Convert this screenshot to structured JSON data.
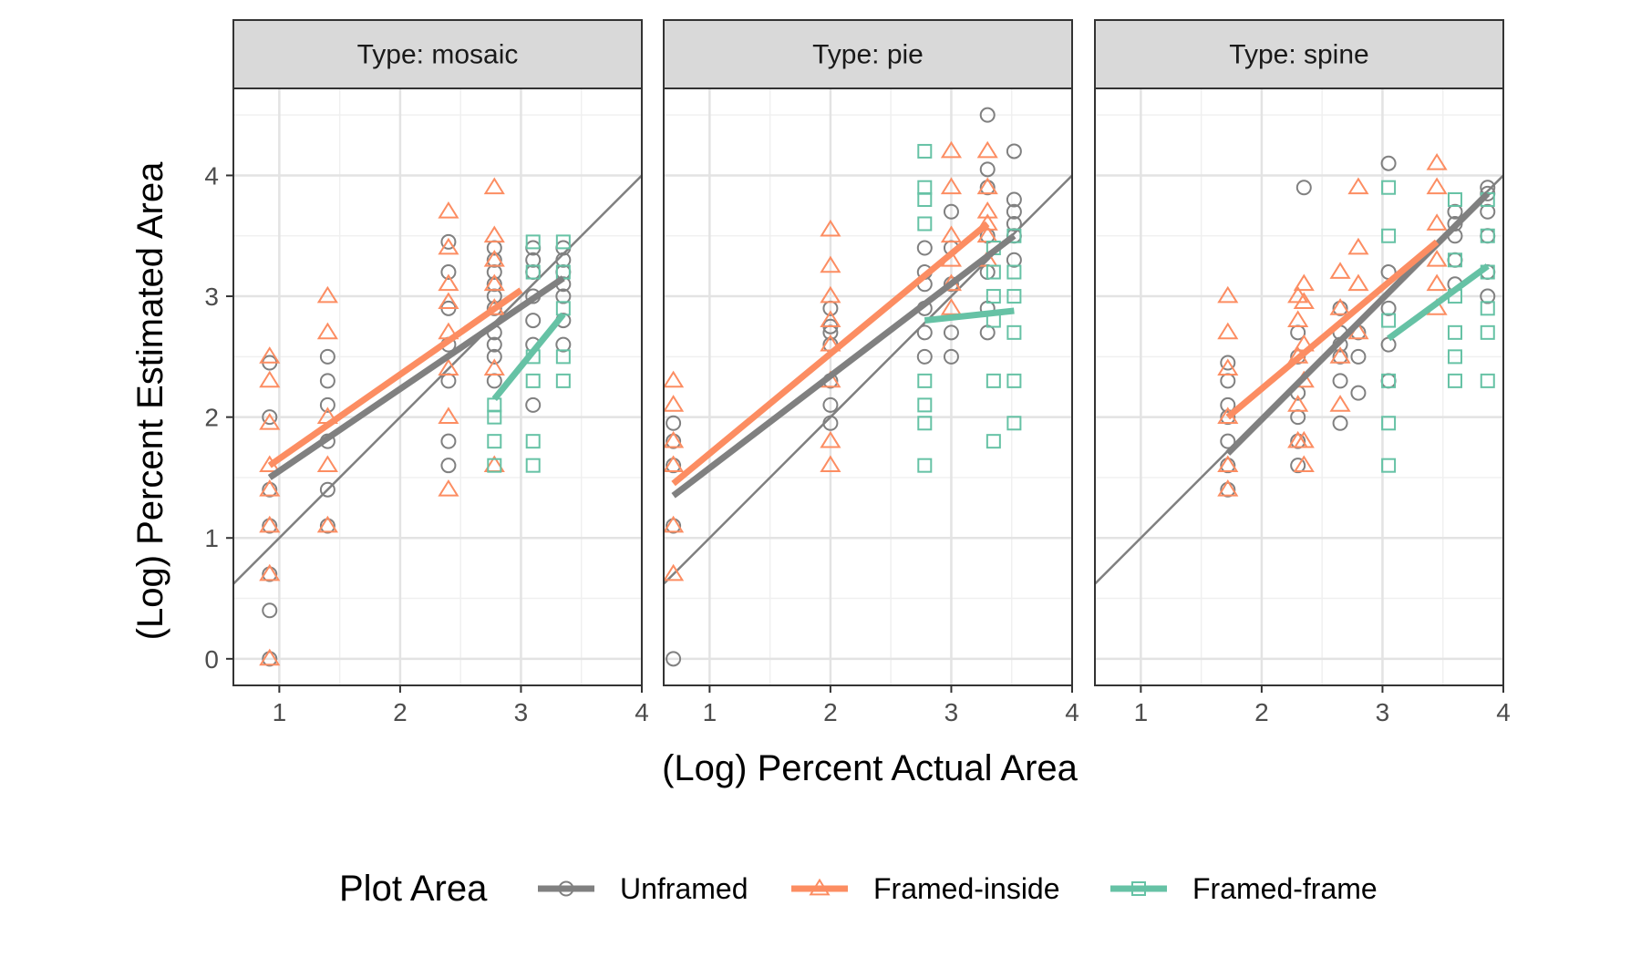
{
  "chart_data": {
    "type": "scatter",
    "xlabel": "(Log) Percent Actual Area",
    "ylabel": "(Log) Percent Estimated Area",
    "xlim": [
      0.62,
      4.0
    ],
    "ylim": [
      -0.22,
      4.72
    ],
    "x_ticks": [
      "1",
      "2",
      "3",
      "4"
    ],
    "y_ticks": [
      "0",
      "1",
      "2",
      "3",
      "4"
    ],
    "grid": true,
    "reference_line": "y = x",
    "legend": {
      "title": "Plot Area",
      "position": "bottom",
      "entries": [
        "Unframed",
        "Framed-inside",
        "Framed-frame"
      ]
    },
    "colors": {
      "Unframed": "#808080",
      "Framed-inside": "#fc8d62",
      "Framed-frame": "#66c2a5"
    },
    "panels": [
      {
        "strip": "Type: mosaic",
        "series": [
          {
            "name": "Unframed",
            "x": [
              0.92,
              0.92,
              0.92,
              0.92,
              0.92,
              0.92,
              0.92,
              1.4,
              1.4,
              1.4,
              1.4,
              1.4,
              1.4,
              2.4,
              2.4,
              2.4,
              2.4,
              2.4,
              2.4,
              2.4,
              2.78,
              2.78,
              2.78,
              2.78,
              2.78,
              2.78,
              2.78,
              2.78,
              2.78,
              2.78,
              3.1,
              3.1,
              3.1,
              3.1,
              3.1,
              3.1,
              3.1,
              3.35,
              3.35,
              3.35,
              3.35,
              3.35,
              3.35,
              3.35
            ],
            "y": [
              0.0,
              0.4,
              0.7,
              1.1,
              1.4,
              2.0,
              2.45,
              1.1,
              1.4,
              1.8,
              2.1,
              2.3,
              2.5,
              1.6,
              1.8,
              2.3,
              2.6,
              2.9,
              3.2,
              3.45,
              2.3,
              2.5,
              2.7,
              2.9,
              3.0,
              3.1,
              3.2,
              3.3,
              3.4,
              2.6,
              2.1,
              2.6,
              2.8,
              3.0,
              3.2,
              3.3,
              3.4,
              2.6,
              2.8,
              3.0,
              3.1,
              3.2,
              3.3,
              3.4
            ],
            "fit": {
              "x": [
                0.92,
                3.35
              ],
              "y": [
                1.5,
                3.15
              ]
            }
          },
          {
            "name": "Framed-inside",
            "x": [
              0.92,
              0.92,
              0.92,
              0.92,
              0.92,
              0.92,
              0.92,
              0.92,
              1.4,
              1.4,
              1.4,
              1.4,
              1.4,
              2.4,
              2.4,
              2.4,
              2.4,
              2.4,
              2.4,
              2.4,
              2.4,
              2.78,
              2.78,
              2.78,
              2.78,
              2.78,
              2.78,
              2.78
            ],
            "y": [
              0.0,
              0.7,
              1.1,
              1.4,
              1.6,
              1.95,
              2.3,
              2.5,
              1.1,
              1.6,
              2.0,
              2.7,
              3.0,
              1.4,
              2.0,
              2.4,
              2.7,
              2.95,
              3.1,
              3.4,
              3.7,
              1.6,
              2.4,
              2.9,
              3.1,
              3.3,
              3.5,
              3.9
            ],
            "fit": {
              "x": [
                0.92,
                3.0
              ],
              "y": [
                1.6,
                3.05
              ]
            }
          },
          {
            "name": "Framed-frame",
            "x": [
              2.78,
              2.78,
              2.78,
              2.78,
              3.1,
              3.1,
              3.1,
              3.1,
              3.1,
              3.1,
              3.35,
              3.35,
              3.35,
              3.35,
              3.35
            ],
            "y": [
              1.6,
              1.8,
              2.0,
              2.1,
              1.6,
              1.8,
              2.3,
              2.5,
              3.2,
              3.45,
              2.3,
              2.5,
              2.9,
              3.2,
              3.45
            ],
            "fit": {
              "x": [
                2.78,
                3.35
              ],
              "y": [
                2.15,
                2.85
              ]
            }
          }
        ]
      },
      {
        "strip": "Type: pie",
        "series": [
          {
            "name": "Unframed",
            "x": [
              0.7,
              0.7,
              0.7,
              0.7,
              0.7,
              2.0,
              2.0,
              2.0,
              2.0,
              2.0,
              2.0,
              2.0,
              2.78,
              2.78,
              2.78,
              2.78,
              2.78,
              2.78,
              3.0,
              3.0,
              3.0,
              3.0,
              3.0,
              3.3,
              3.3,
              3.3,
              3.3,
              3.3,
              3.3,
              3.3,
              3.52,
              3.52,
              3.52,
              3.52,
              3.52,
              3.52
            ],
            "y": [
              0.0,
              1.1,
              1.6,
              1.8,
              1.95,
              1.95,
              2.1,
              2.3,
              2.6,
              2.75,
              2.9,
              2.7,
              2.5,
              2.7,
              2.9,
              3.1,
              3.2,
              3.4,
              2.5,
              2.7,
              3.1,
              3.4,
              3.7,
              2.7,
              2.9,
              3.2,
              3.5,
              3.9,
              4.05,
              4.5,
              3.3,
              3.5,
              3.6,
              3.7,
              3.8,
              4.2
            ],
            "fit": {
              "x": [
                0.7,
                3.52
              ],
              "y": [
                1.35,
                3.5
              ]
            }
          },
          {
            "name": "Framed-inside",
            "x": [
              0.7,
              0.7,
              0.7,
              0.7,
              0.7,
              0.7,
              2.0,
              2.0,
              2.0,
              2.0,
              2.0,
              2.0,
              2.0,
              2.0,
              3.0,
              3.0,
              3.0,
              3.0,
              3.0,
              3.0,
              3.3,
              3.3,
              3.3,
              3.3,
              3.3,
              3.3
            ],
            "y": [
              0.7,
              1.1,
              1.6,
              1.8,
              2.1,
              2.3,
              1.6,
              1.8,
              2.3,
              2.6,
              2.8,
              3.0,
              3.25,
              3.55,
              2.9,
              3.1,
              3.3,
              3.5,
              3.9,
              4.2,
              3.3,
              3.5,
              3.6,
              3.7,
              3.9,
              4.2
            ],
            "fit": {
              "x": [
                0.7,
                3.3
              ],
              "y": [
                1.45,
                3.6
              ]
            }
          },
          {
            "name": "Framed-frame",
            "x": [
              2.78,
              2.78,
              2.78,
              2.78,
              2.78,
              2.78,
              2.78,
              2.78,
              3.35,
              3.35,
              3.35,
              3.35,
              3.35,
              3.35,
              3.52,
              3.52,
              3.52,
              3.52,
              3.52,
              3.52
            ],
            "y": [
              1.6,
              1.95,
              2.1,
              2.3,
              3.6,
              3.8,
              3.9,
              4.2,
              1.8,
              2.3,
              2.8,
              3.0,
              3.2,
              3.4,
              1.95,
              2.3,
              2.7,
              3.0,
              3.2,
              3.5
            ],
            "fit": {
              "x": [
                2.78,
                3.52
              ],
              "y": [
                2.8,
                2.88
              ]
            }
          }
        ]
      },
      {
        "strip": "Type: spine",
        "series": [
          {
            "name": "Unframed",
            "x": [
              1.72,
              1.72,
              1.72,
              1.72,
              1.72,
              1.72,
              1.72,
              2.3,
              2.3,
              2.3,
              2.3,
              2.3,
              2.3,
              2.35,
              2.65,
              2.65,
              2.65,
              2.65,
              2.65,
              2.65,
              2.8,
              2.8,
              2.8,
              3.05,
              3.05,
              3.05,
              3.05,
              3.05,
              3.6,
              3.6,
              3.6,
              3.6,
              3.6,
              3.87,
              3.87,
              3.87,
              3.87,
              3.87,
              3.87
            ],
            "y": [
              1.4,
              1.6,
              1.8,
              2.0,
              2.1,
              2.3,
              2.45,
              1.6,
              1.8,
              2.0,
              2.2,
              2.5,
              2.7,
              3.9,
              1.95,
              2.3,
              2.5,
              2.6,
              2.7,
              2.9,
              2.2,
              2.5,
              2.7,
              2.3,
              2.6,
              2.9,
              3.2,
              4.1,
              3.1,
              3.3,
              3.5,
              3.6,
              3.7,
              3.0,
              3.2,
              3.5,
              3.7,
              3.85,
              3.9
            ],
            "fit": {
              "x": [
                1.72,
                3.87
              ],
              "y": [
                1.7,
                3.85
              ]
            }
          },
          {
            "name": "Framed-inside",
            "x": [
              1.72,
              1.72,
              1.72,
              1.72,
              1.72,
              1.72,
              2.3,
              2.3,
              2.3,
              2.3,
              2.3,
              2.35,
              2.35,
              2.35,
              2.35,
              2.35,
              2.35,
              2.65,
              2.65,
              2.65,
              2.65,
              2.8,
              2.8,
              2.8,
              2.8,
              3.45,
              3.45,
              3.45,
              3.45,
              3.45,
              3.45
            ],
            "y": [
              1.4,
              1.6,
              2.0,
              2.4,
              2.7,
              3.0,
              1.8,
              2.1,
              2.5,
              2.8,
              3.0,
              1.6,
              1.8,
              2.3,
              2.6,
              2.95,
              3.1,
              2.1,
              2.5,
              2.9,
              3.2,
              2.7,
              3.1,
              3.4,
              3.9,
              2.9,
              3.1,
              3.3,
              3.6,
              3.9,
              4.1
            ],
            "fit": {
              "x": [
                1.72,
                3.45
              ],
              "y": [
                2.0,
                3.45
              ]
            }
          },
          {
            "name": "Framed-frame",
            "x": [
              3.05,
              3.05,
              3.05,
              3.05,
              3.05,
              3.05,
              3.6,
              3.6,
              3.6,
              3.6,
              3.6,
              3.6,
              3.87,
              3.87,
              3.87,
              3.87,
              3.87,
              3.87
            ],
            "y": [
              1.6,
              1.95,
              2.3,
              2.8,
              3.5,
              3.9,
              2.3,
              2.5,
              2.7,
              3.0,
              3.3,
              3.8,
              2.3,
              2.7,
              2.9,
              3.2,
              3.5,
              3.8
            ],
            "fit": {
              "x": [
                3.05,
                3.87
              ],
              "y": [
                2.65,
                3.25
              ]
            }
          }
        ]
      }
    ]
  }
}
